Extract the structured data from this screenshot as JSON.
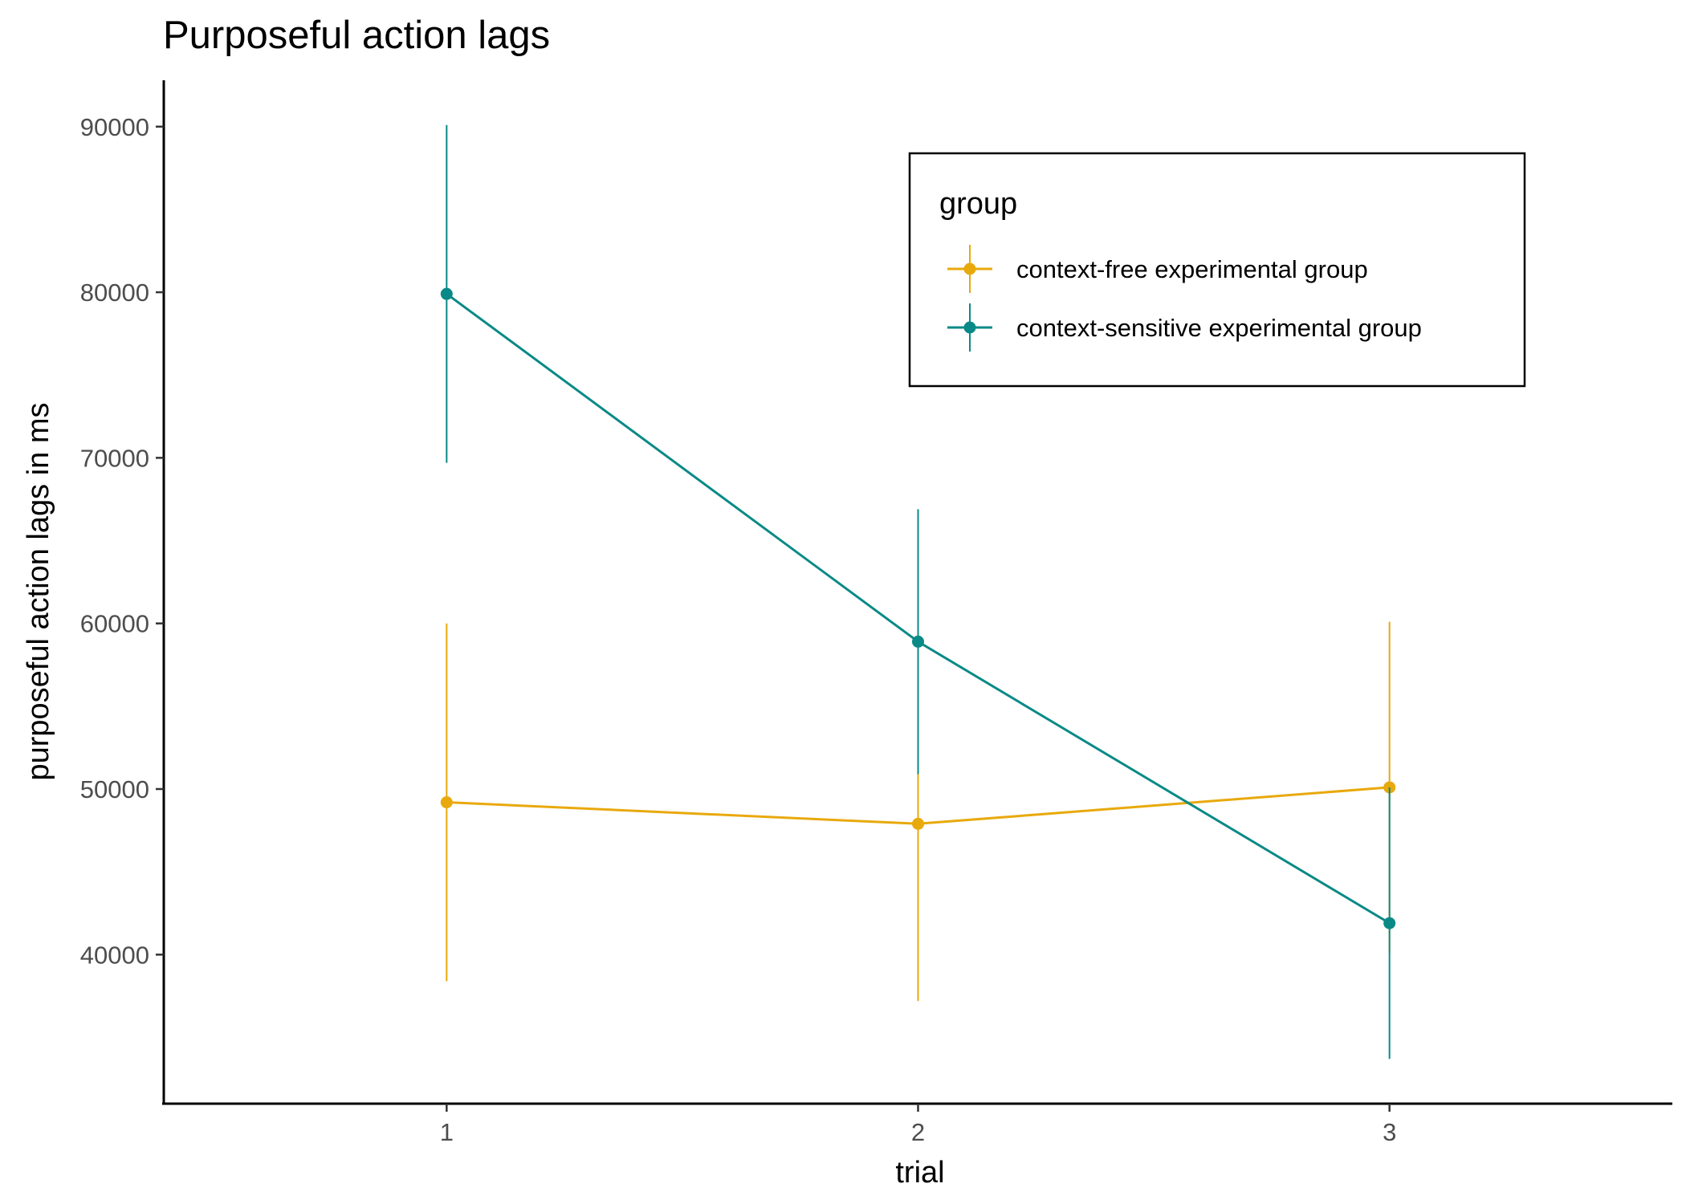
{
  "chart_data": {
    "type": "line",
    "title": "Purposeful action lags",
    "xlabel": "trial",
    "ylabel": "purposeful action lags in ms",
    "categories": [
      "1",
      "2",
      "3"
    ],
    "x": [
      1,
      2,
      3
    ],
    "xlim": [
      0.4,
      3.6
    ],
    "ylim": [
      31000,
      92800
    ],
    "yticks": [
      40000,
      50000,
      60000,
      70000,
      80000,
      90000
    ],
    "ytick_labels": [
      "40000",
      "50000",
      "60000",
      "70000",
      "80000",
      "90000"
    ],
    "grid": false,
    "error_bars": true,
    "legend": {
      "title": "group",
      "position": "top-right",
      "boxed": true
    },
    "series": [
      {
        "name": "context-free experimental group",
        "color": "#E8A90C",
        "values": [
          49200,
          47900,
          50100
        ],
        "error_low": [
          38400,
          37200,
          40100
        ],
        "error_high": [
          60000,
          58700,
          60100
        ]
      },
      {
        "name": "context-sensitive experimental group",
        "color": "#0A8A87",
        "values": [
          79900,
          58900,
          41900
        ],
        "error_low": [
          69700,
          50900,
          33700
        ],
        "error_high": [
          90100,
          66900,
          50100
        ]
      }
    ]
  }
}
